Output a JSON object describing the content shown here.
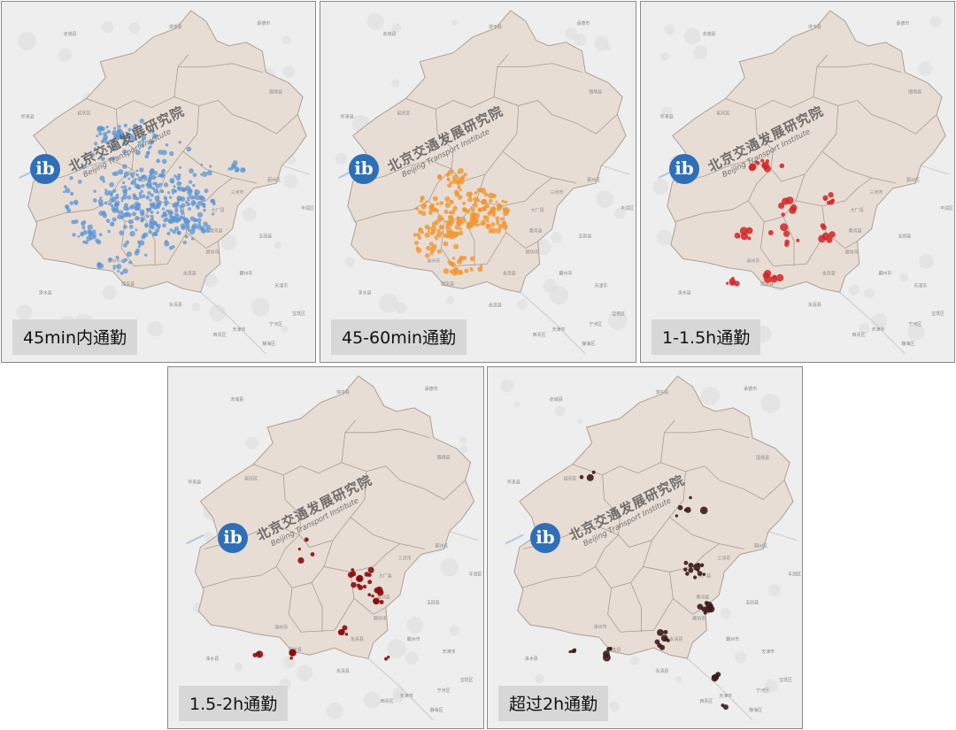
{
  "panels": [
    {
      "id": "p1",
      "label": "45min内通勤",
      "color": "#5b94d6"
    },
    {
      "id": "p2",
      "label": "45-60min通勤",
      "color": "#f3962e"
    },
    {
      "id": "p3",
      "label": "1-1.5h通勤",
      "color": "#d42525"
    },
    {
      "id": "p4",
      "label": "1.5-2h通勤",
      "color": "#8b0b0b"
    },
    {
      "id": "p5",
      "label": "超过2h通勤",
      "color": "#3a1a1a"
    }
  ],
  "watermark": {
    "logo": "ib",
    "name_cn": "北京交通发展研究院",
    "name_en": "Beijing Transport Institute"
  },
  "colors": {
    "background": "#eeeeee",
    "region_fill": "#e8ddd4",
    "region_border": "#a89c90"
  }
}
